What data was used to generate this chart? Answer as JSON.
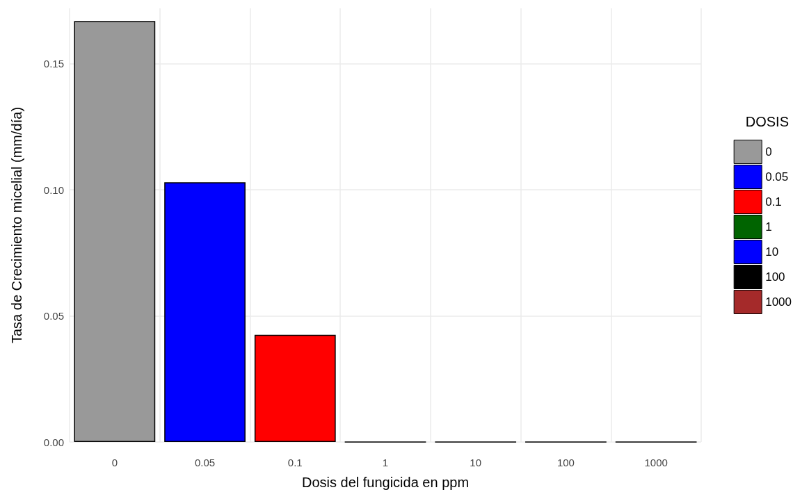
{
  "chart_data": {
    "type": "bar",
    "xlabel": "Dosis del fungicida en ppm",
    "ylabel": "Tasa de Crecimiento micelial (mm/día)",
    "legend_title": "DOSIS",
    "categories": [
      "0",
      "0.05",
      "0.1",
      "1",
      "10",
      "100",
      "1000"
    ],
    "series": [
      {
        "name": "0",
        "color": "#999999",
        "values": [
          0.167,
          null,
          null,
          null,
          null,
          null,
          null
        ]
      },
      {
        "name": "0.05",
        "color": "#0000ff",
        "values": [
          null,
          0.103,
          null,
          null,
          null,
          null,
          null
        ]
      },
      {
        "name": "0.1",
        "color": "#ff0000",
        "values": [
          null,
          null,
          0.0425,
          null,
          null,
          null,
          null
        ]
      },
      {
        "name": "1",
        "color": "#006400",
        "values": [
          null,
          null,
          null,
          0,
          null,
          null,
          null
        ]
      },
      {
        "name": "10",
        "color": "#0000ff",
        "values": [
          null,
          null,
          null,
          null,
          0,
          null,
          null
        ]
      },
      {
        "name": "100",
        "color": "#000000",
        "values": [
          null,
          null,
          null,
          null,
          null,
          0,
          null
        ]
      },
      {
        "name": "1000",
        "color": "#a52a2a",
        "values": [
          null,
          null,
          null,
          null,
          null,
          null,
          0
        ]
      }
    ],
    "ylim": [
      0,
      0.172
    ],
    "yticks": [
      {
        "value": 0,
        "label": "0.00"
      },
      {
        "value": 0.05,
        "label": "0.05"
      },
      {
        "value": 0.1,
        "label": "0.10"
      },
      {
        "value": 0.15,
        "label": "0.15"
      }
    ],
    "grid": true,
    "legend": "right"
  }
}
